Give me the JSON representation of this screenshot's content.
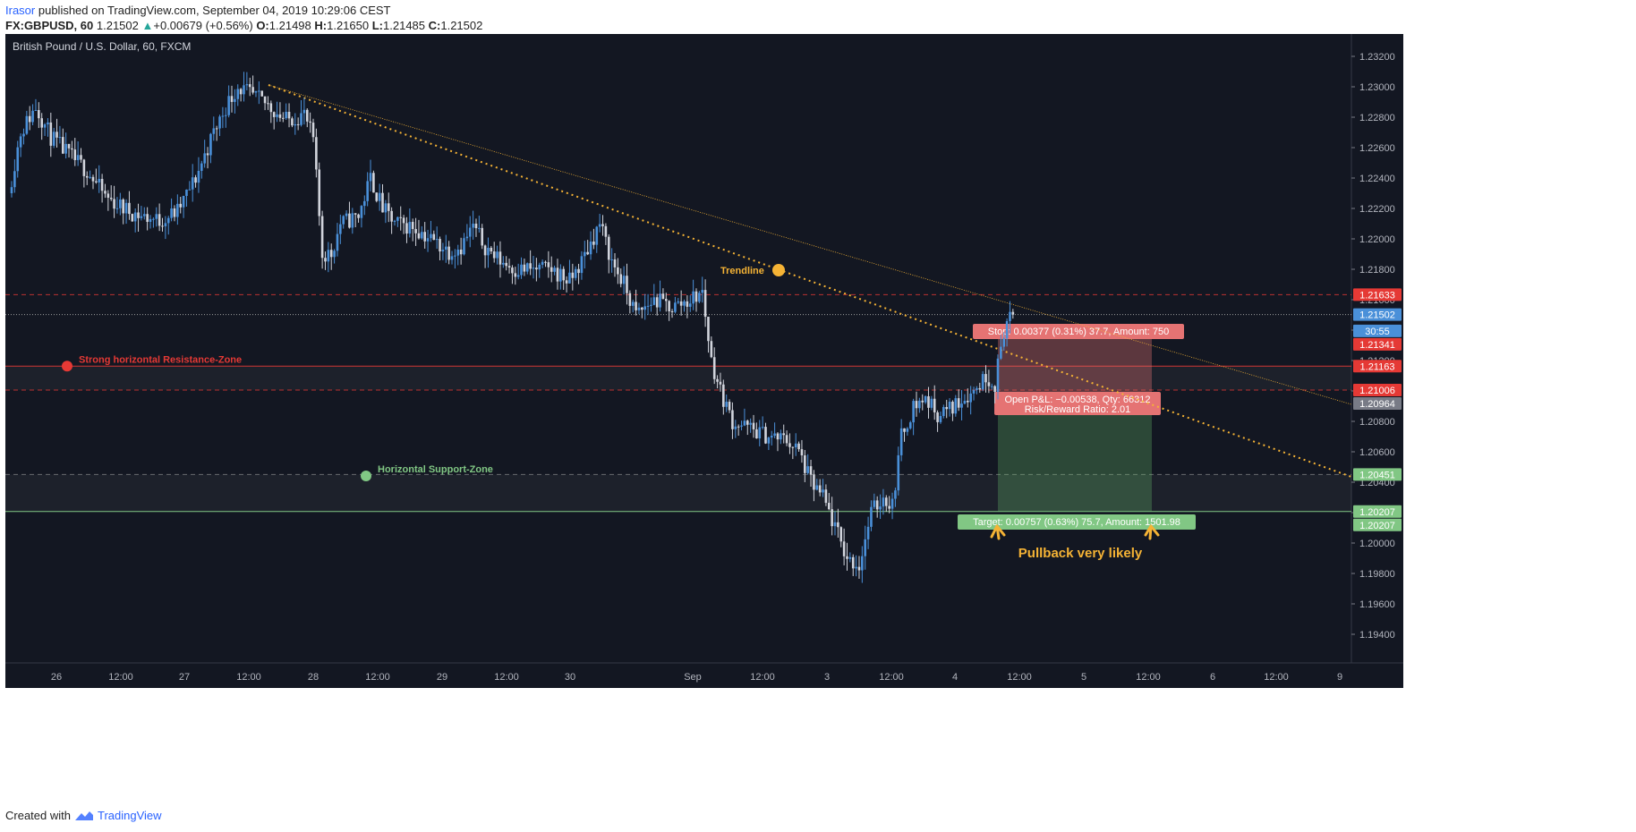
{
  "header": {
    "user": "Irasor",
    "published_text": "published on TradingView.com, September 04, 2019 10:29:06 CEST",
    "symbol": "FX:GBPUSD, 60",
    "last": "1.21502",
    "change": "+0.00679 (+0.56%)",
    "o_label": "O:",
    "o": "1.21498",
    "h_label": "H:",
    "h": "1.21650",
    "l_label": "L:",
    "l": "1.21485",
    "c_label": "C:",
    "c": "1.21502"
  },
  "footer": {
    "created_with": "Created with",
    "brand": "TradingView"
  },
  "colors": {
    "background": "#131722",
    "up": "#4a90d9",
    "down": "#d1d4dc",
    "resistance": "#e53935",
    "support": "#81c784",
    "trendline": "#f5b335",
    "stop_zone": "#e57373",
    "target_zone": "#66bb6a"
  },
  "chart_data": {
    "type": "candlestick",
    "title": "British Pound / U.S. Dollar, 60, FXCM",
    "ylim": [
      1.193,
      1.2335
    ],
    "y_ticks": [
      "1.23200",
      "1.23000",
      "1.22800",
      "1.22600",
      "1.22400",
      "1.22200",
      "1.22000",
      "1.21800",
      "1.21600",
      "1.21400",
      "1.21200",
      "1.21000",
      "1.20800",
      "1.20600",
      "1.20400",
      "1.20200",
      "1.20000",
      "1.19800",
      "1.19600",
      "1.19400"
    ],
    "x_ticks": [
      "26",
      "12:00",
      "27",
      "12:00",
      "28",
      "12:00",
      "29",
      "12:00",
      "30",
      "Sep",
      "12:00",
      "3",
      "12:00",
      "4",
      "12:00",
      "5",
      "12:00",
      "6",
      "12:00",
      "9"
    ],
    "anchors": [
      [
        0,
        1.223
      ],
      [
        4,
        1.227
      ],
      [
        9,
        1.2287
      ],
      [
        14,
        1.2267
      ],
      [
        20,
        1.2255
      ],
      [
        26,
        1.2245
      ],
      [
        32,
        1.2228
      ],
      [
        38,
        1.222
      ],
      [
        44,
        1.2215
      ],
      [
        50,
        1.2212
      ],
      [
        56,
        1.2218
      ],
      [
        62,
        1.224
      ],
      [
        68,
        1.227
      ],
      [
        72,
        1.2287
      ],
      [
        76,
        1.23
      ],
      [
        80,
        1.2295
      ],
      [
        86,
        1.2288
      ],
      [
        92,
        1.2278
      ],
      [
        98,
        1.2282
      ],
      [
        101,
        1.2265
      ],
      [
        104,
        1.219
      ],
      [
        107,
        1.219
      ],
      [
        110,
        1.221
      ],
      [
        116,
        1.2215
      ],
      [
        120,
        1.224
      ],
      [
        124,
        1.222
      ],
      [
        128,
        1.221
      ],
      [
        134,
        1.2208
      ],
      [
        140,
        1.22
      ],
      [
        146,
        1.2192
      ],
      [
        150,
        1.2195
      ],
      [
        154,
        1.2208
      ],
      [
        158,
        1.2195
      ],
      [
        162,
        1.2187
      ],
      [
        168,
        1.218
      ],
      [
        174,
        1.218
      ],
      [
        180,
        1.218
      ],
      [
        186,
        1.2172
      ],
      [
        190,
        1.2185
      ],
      [
        196,
        1.221
      ],
      [
        200,
        1.2185
      ],
      [
        204,
        1.217
      ],
      [
        208,
        1.215
      ],
      [
        214,
        1.216
      ],
      [
        220,
        1.2155
      ],
      [
        226,
        1.216
      ],
      [
        230,
        1.2165
      ],
      [
        233,
        1.212
      ],
      [
        236,
        1.21
      ],
      [
        240,
        1.208
      ],
      [
        246,
        1.2075
      ],
      [
        252,
        1.207
      ],
      [
        258,
        1.2068
      ],
      [
        262,
        1.206
      ],
      [
        266,
        1.204
      ],
      [
        270,
        1.203
      ],
      [
        274,
        1.201
      ],
      [
        278,
        1.199
      ],
      [
        282,
        1.1985
      ],
      [
        286,
        1.202
      ],
      [
        290,
        1.203
      ],
      [
        293,
        1.2025
      ],
      [
        296,
        1.207
      ],
      [
        300,
        1.209
      ],
      [
        304,
        1.2095
      ],
      [
        308,
        1.2085
      ],
      [
        312,
        1.2088
      ],
      [
        316,
        1.2095
      ],
      [
        320,
        1.21
      ],
      [
        324,
        1.211
      ],
      [
        327,
        1.2105
      ],
      [
        330,
        1.214
      ],
      [
        332,
        1.215
      ]
    ],
    "last_price": 1.21502,
    "levels": [
      {
        "name": "Strong horizontal Resistance-Zone",
        "value": 1.21163
      },
      {
        "name": "Horizontal Support-Zone",
        "value": 1.20207
      }
    ],
    "zone_lines": [
      1.21633,
      1.21006,
      1.20451
    ],
    "trendline_label": "Trendline",
    "position": {
      "entry": 1.20964,
      "stop": 1.21341,
      "target": 1.20207,
      "stop_label": "Stop: 0.00377 (0.31%) 37.7, Amount: 750",
      "pnl_label": "Open P&L: −0.00538, Qty: 66312",
      "rr_label": "Risk/Reward Ratio: 2.01",
      "target_label": "Target: 0.00757 (0.63%) 75.7, Amount: 1501.98"
    },
    "price_tags": [
      {
        "text": "1.21633",
        "value": 1.21633,
        "color": "#e53935"
      },
      {
        "text": "1.21502",
        "value": 1.21502,
        "color": "#4a90d9"
      },
      {
        "text": "30:55",
        "value": 1.21395,
        "color": "#4a90d9"
      },
      {
        "text": "1.21341",
        "value": 1.21341,
        "color": "#e53935"
      },
      {
        "text": "1.21163",
        "value": 1.21163,
        "color": "#e53935"
      },
      {
        "text": "1.21006",
        "value": 1.21006,
        "color": "#e53935"
      },
      {
        "text": "1.20964",
        "value": 1.20964,
        "color": "#787b86"
      },
      {
        "text": "1.20451",
        "value": 1.20451,
        "color": "#81c784"
      },
      {
        "text": "1.20207",
        "value": 1.20207,
        "color": "#81c784"
      },
      {
        "text": "1.20207",
        "value": 1.20207,
        "color": "#81c784"
      }
    ],
    "annotation": "Pullback very likely"
  }
}
